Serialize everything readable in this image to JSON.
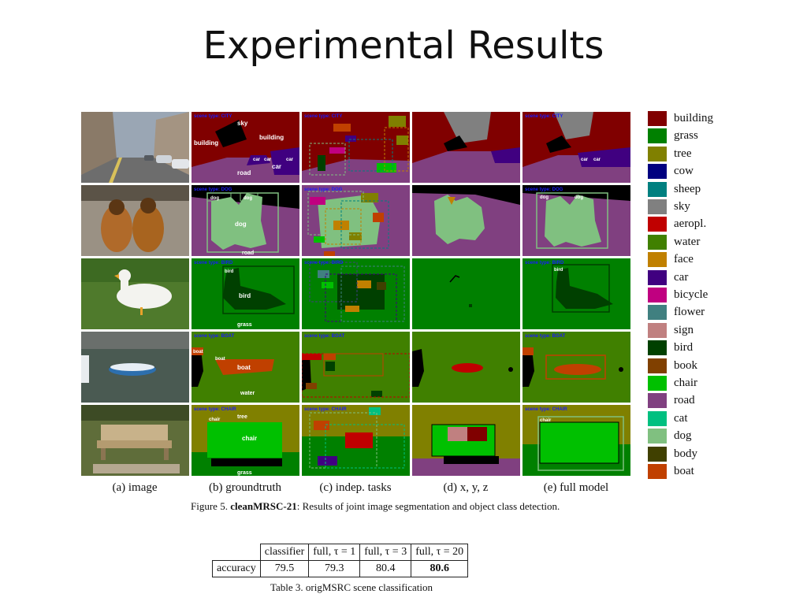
{
  "slide": {
    "title": "Experimental Results"
  },
  "figure": {
    "columns": [
      {
        "caption": "(a) image"
      },
      {
        "caption": "(b) groundtruth"
      },
      {
        "caption": "(c) indep. tasks"
      },
      {
        "caption": "(d) x, y, z"
      },
      {
        "caption": "(e) full model"
      }
    ],
    "rows": [
      {
        "scene_label": "scene type: CITY",
        "labels": {
          "sky": "sky",
          "building_left": "building",
          "building_right": "building",
          "road": "road",
          "car1": "car",
          "car2": "car",
          "car3": "car",
          "car4": "car"
        }
      },
      {
        "scene_label": "scene type: DOG",
        "labels": {
          "dog_big": "dog",
          "dog1": "dog",
          "dog2": "dog",
          "road": "road"
        }
      },
      {
        "scene_label": "scene type: BIRD",
        "labels": {
          "bird_box": "bird",
          "bird": "bird",
          "grass": "grass"
        }
      },
      {
        "scene_label": "scene type: BOAT",
        "labels": {
          "boat_tag": "boat",
          "boat_box": "boat",
          "boat": "boat",
          "water": "water"
        }
      },
      {
        "scene_label": "scene type: CHAIR",
        "labels": {
          "chair1": "chair",
          "tree": "tree",
          "chair": "chair",
          "grass": "grass"
        }
      }
    ],
    "caption_prefix": "Figure 5. ",
    "caption_bold": "cleanMRSC-21",
    "caption_text": ": Results of joint image segmentation and object class detection."
  },
  "legend": [
    {
      "label": "building",
      "color": "#800000"
    },
    {
      "label": "grass",
      "color": "#008000"
    },
    {
      "label": "tree",
      "color": "#808000"
    },
    {
      "label": "cow",
      "color": "#000080"
    },
    {
      "label": "sheep",
      "color": "#008080"
    },
    {
      "label": "sky",
      "color": "#808080"
    },
    {
      "label": "aeropl.",
      "color": "#c00000"
    },
    {
      "label": "water",
      "color": "#408000"
    },
    {
      "label": "face",
      "color": "#c08000"
    },
    {
      "label": "car",
      "color": "#400080"
    },
    {
      "label": "bicycle",
      "color": "#c00080"
    },
    {
      "label": "flower",
      "color": "#408080"
    },
    {
      "label": "sign",
      "color": "#c08080"
    },
    {
      "label": "bird",
      "color": "#004000"
    },
    {
      "label": "book",
      "color": "#804000"
    },
    {
      "label": "chair",
      "color": "#00c000"
    },
    {
      "label": "road",
      "color": "#804080"
    },
    {
      "label": "cat",
      "color": "#00c080"
    },
    {
      "label": "dog",
      "color": "#80c080"
    },
    {
      "label": "body",
      "color": "#404000"
    },
    {
      "label": "boat",
      "color": "#c04000"
    }
  ],
  "table": {
    "headers": [
      "",
      "classifier",
      "full, τ = 1",
      "full, τ = 3",
      "full, τ = 20"
    ],
    "row_label": "accuracy",
    "values": [
      "79.5",
      "79.3",
      "80.4",
      "80.6"
    ],
    "caption": "Table 3. origMSRC scene classification"
  }
}
